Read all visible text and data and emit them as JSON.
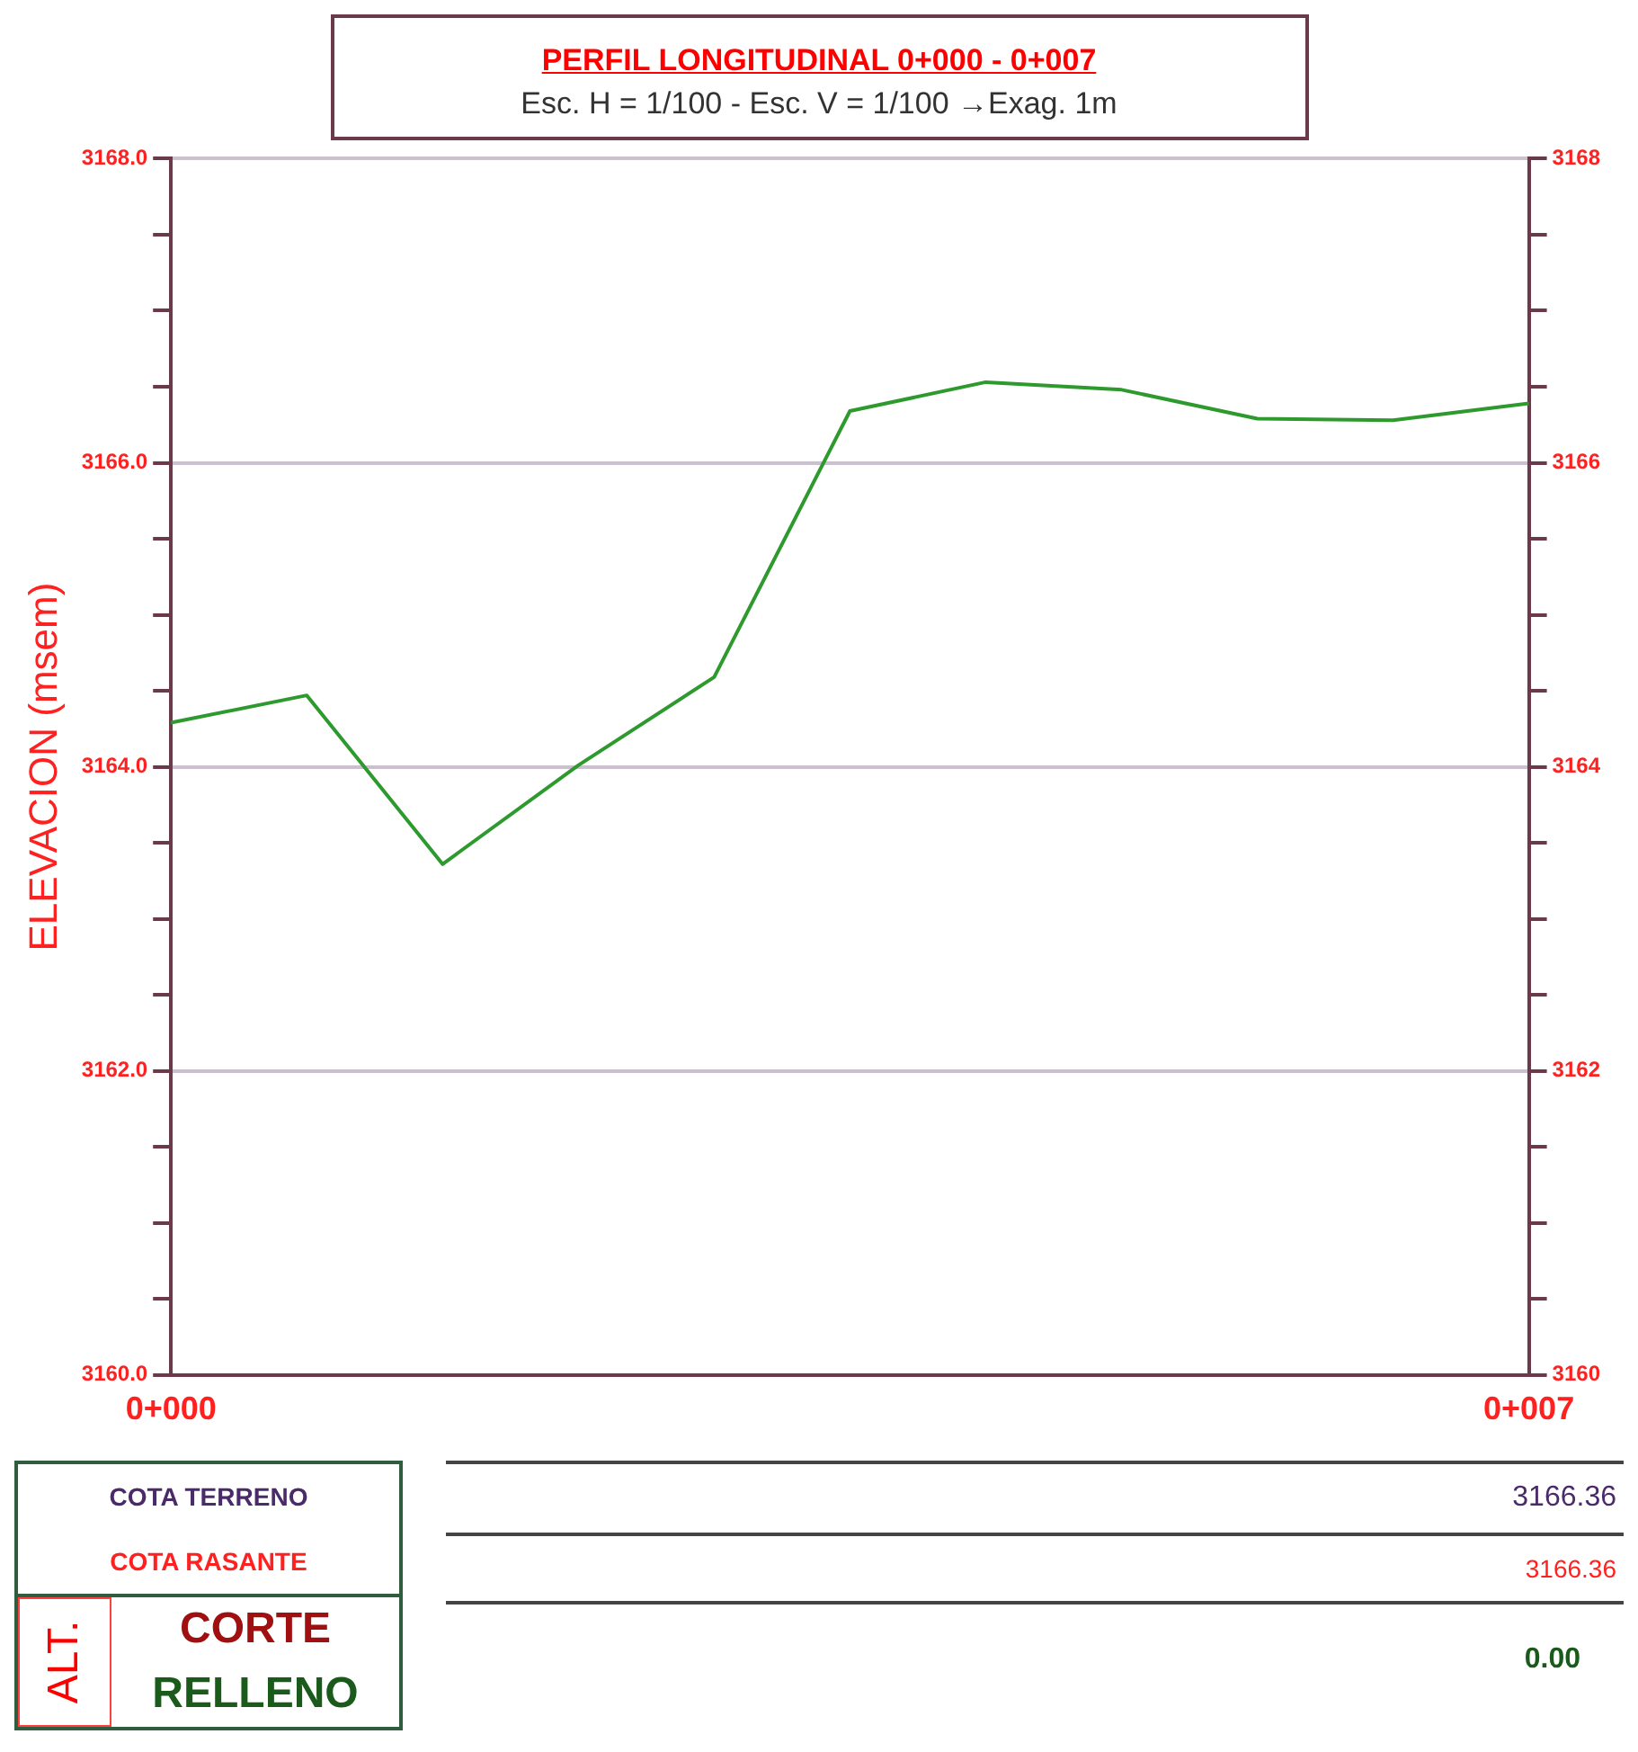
{
  "chart_data": {
    "type": "line",
    "title": "PERFIL LONGITUDINAL 0+000 - 0+007",
    "subtitle": "Esc. H = 1/100 - Esc. V = 1/100 →Exag. 1m",
    "ylabel": "ELEVACION (msem)",
    "categories": [
      "0+000",
      null,
      null,
      null,
      null,
      null,
      null,
      null,
      null,
      null,
      "0+007"
    ],
    "series": [
      {
        "color": "#2e9a2e",
        "values": [
          3164.29,
          3164.47,
          3163.36,
          3164.01,
          3164.59,
          3166.34,
          3166.53,
          3166.48,
          3166.29,
          3166.28,
          3166.39
        ]
      }
    ],
    "ylim": [
      3160,
      3168
    ],
    "yticks": [
      {
        "value": 3160,
        "label": "3160.0"
      },
      {
        "value": 3160.5,
        "label": null
      },
      {
        "value": 3161,
        "label": null
      },
      {
        "value": 3161.5,
        "label": null
      },
      {
        "value": 3162,
        "label": "3162.0"
      },
      {
        "value": 3162.5,
        "label": null
      },
      {
        "value": 3163,
        "label": null
      },
      {
        "value": 3163.5,
        "label": null
      },
      {
        "value": 3164,
        "label": "3164.0"
      },
      {
        "value": 3164.5,
        "label": null
      },
      {
        "value": 3165,
        "label": null
      },
      {
        "value": 3165.5,
        "label": null
      },
      {
        "value": 3166,
        "label": "3166.0"
      },
      {
        "value": 3166.5,
        "label": null
      },
      {
        "value": 3167,
        "label": null
      },
      {
        "value": 3167.5,
        "label": null
      },
      {
        "value": 3168,
        "label": "3168.0"
      }
    ],
    "y2lim": [
      3160,
      3168
    ],
    "y2ticks": [
      3160,
      {
        "value": 3160.5,
        "label": null
      },
      {
        "value": 3161,
        "label": null
      },
      {
        "value": 3161.5,
        "label": null
      },
      3162,
      {
        "value": 3162.5,
        "label": null
      },
      {
        "value": 3163,
        "label": null
      },
      {
        "value": 3163.5,
        "label": null
      },
      3164,
      {
        "value": 3164.5,
        "label": null
      },
      {
        "value": 3165,
        "label": null
      },
      {
        "value": 3165.5,
        "label": null
      },
      3166,
      {
        "value": 3166.5,
        "label": null
      },
      {
        "value": 3167,
        "label": null
      },
      {
        "value": 3167.5,
        "label": null
      },
      3168
    ],
    "grid": "y",
    "marker": "none",
    "line_style": "solid",
    "legend": false,
    "annotations": [
      "COTA TERRENO",
      "COTA RASANTE",
      "ALT.",
      "CORTE",
      "RELLENO",
      "3166.36",
      "3166.36",
      "0.00"
    ]
  }
}
